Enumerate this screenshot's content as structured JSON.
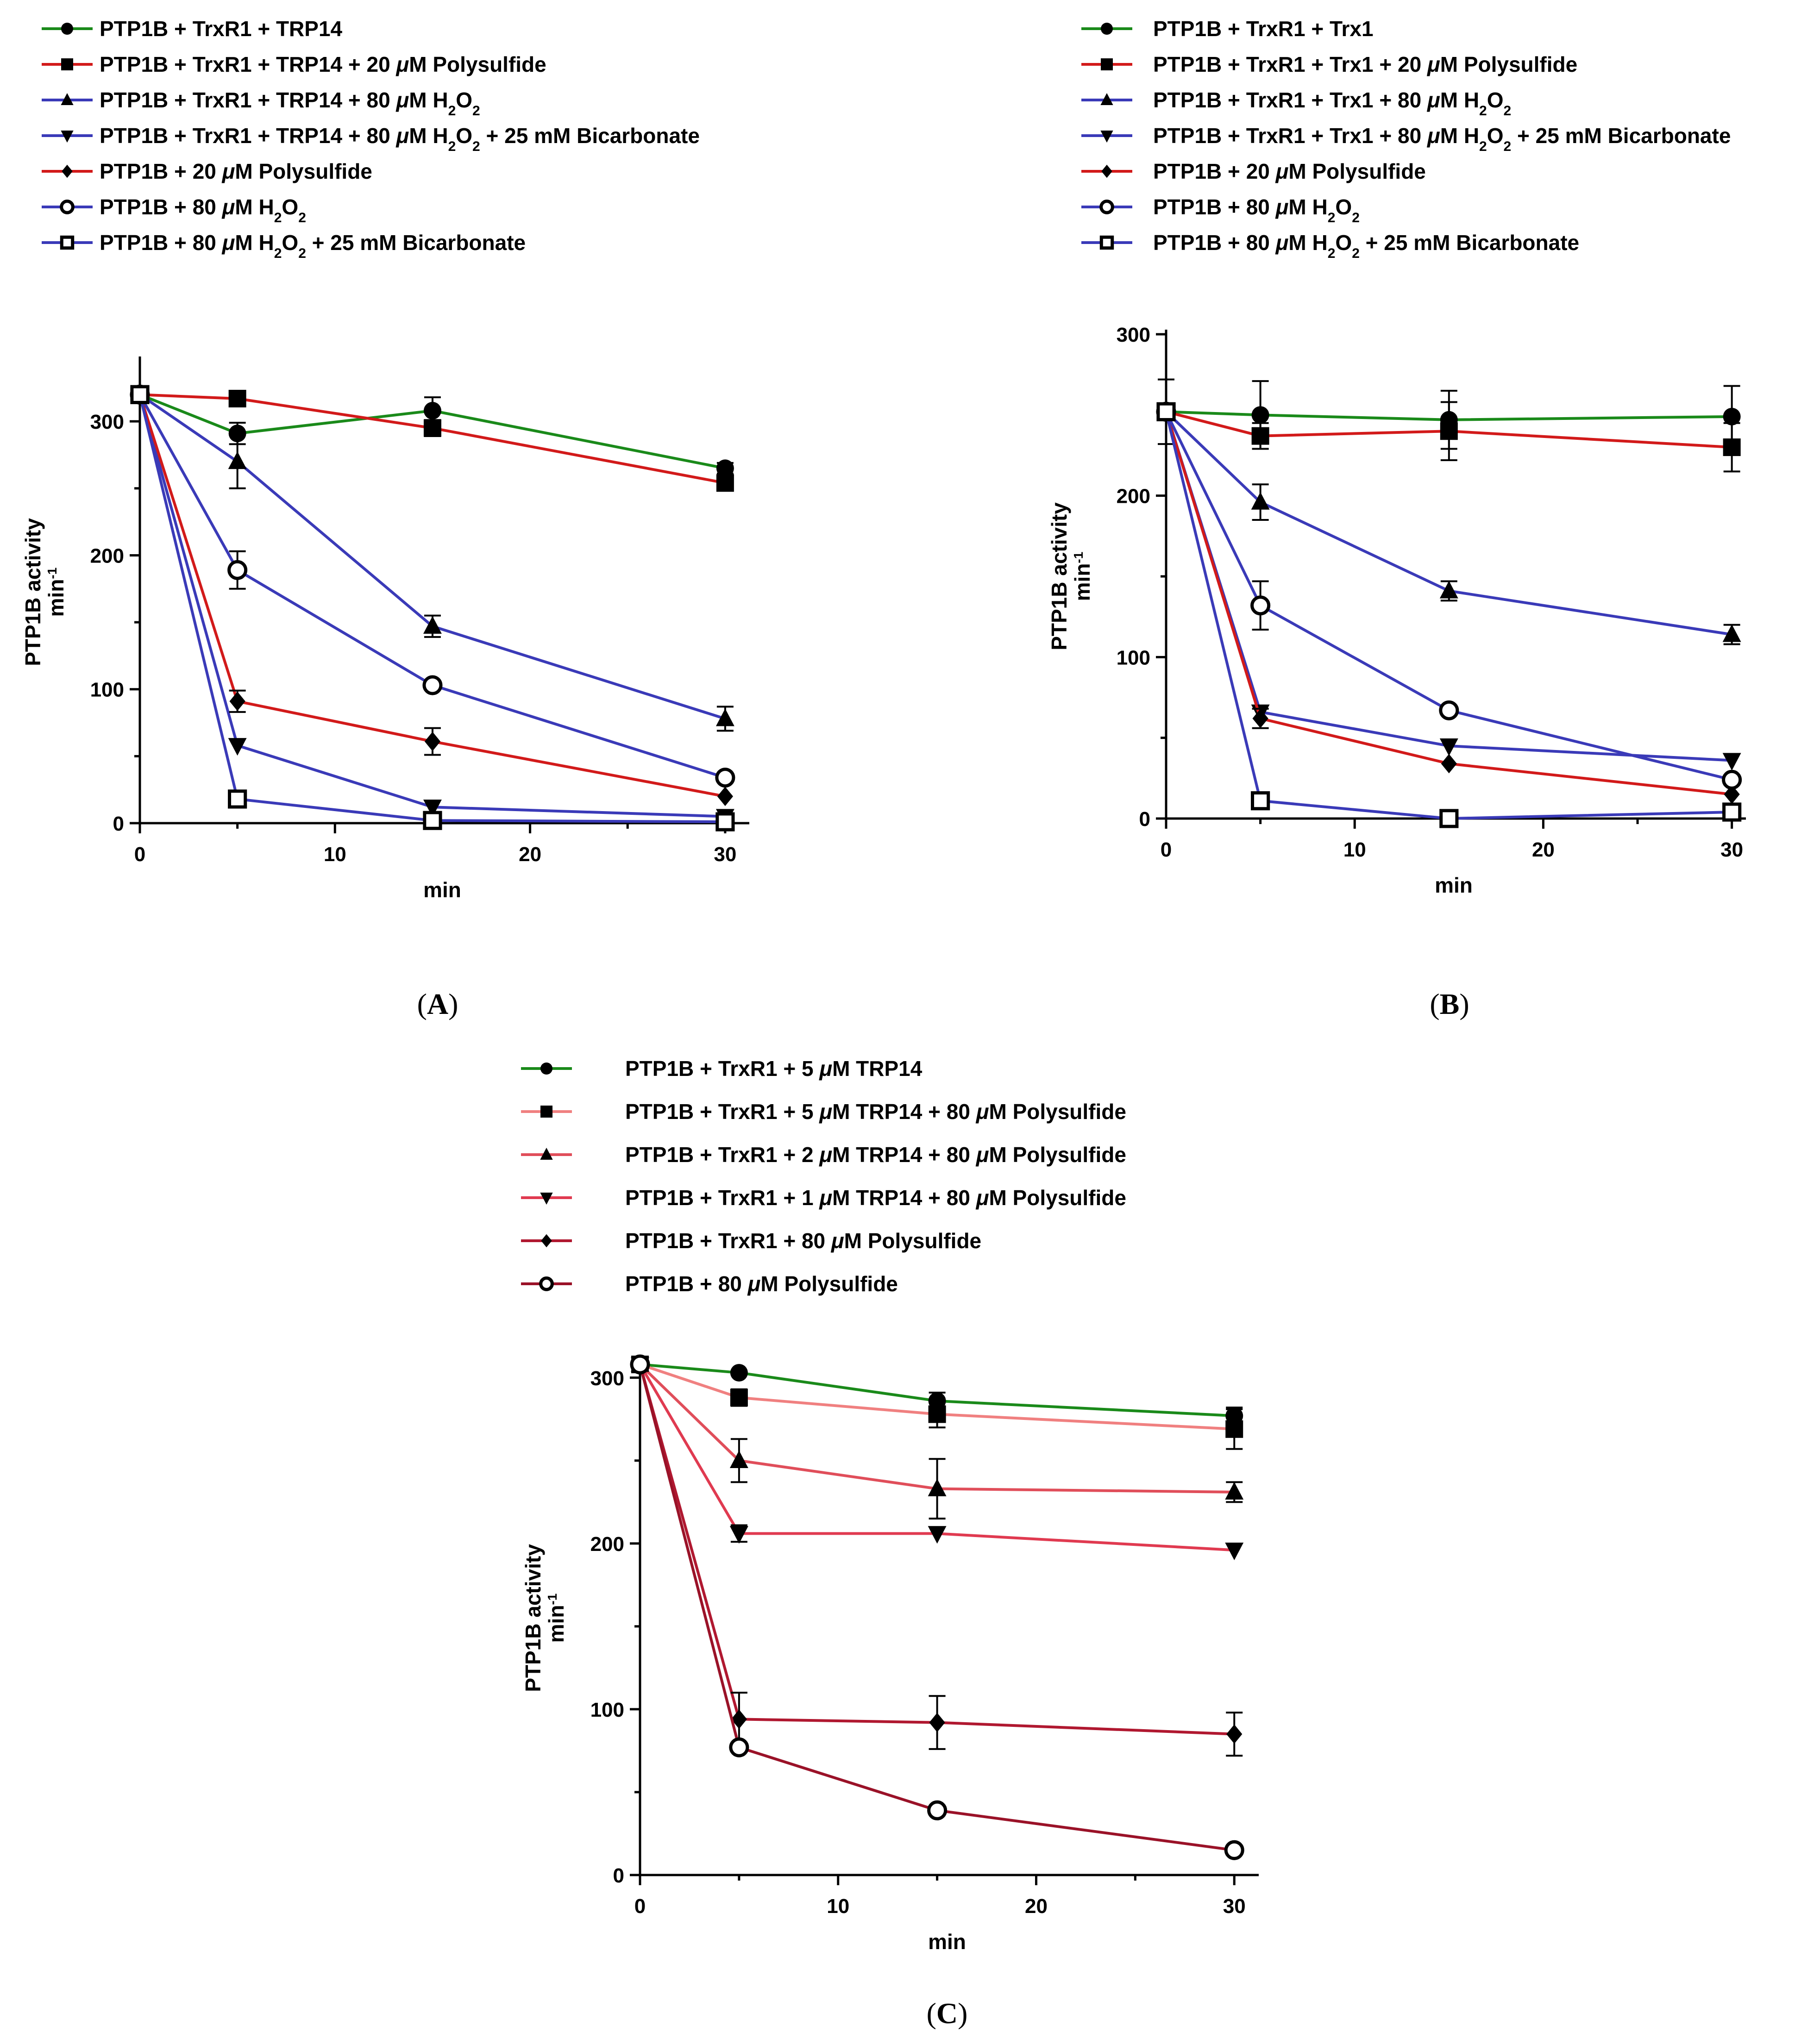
{
  "chart_data": [
    {
      "type": "line",
      "panel_label": "A",
      "xlabel": "min",
      "ylabel": "PTP1B activity",
      "ylabel_unit": "min",
      "ylabel_unit_sup": "-1",
      "xlim": [
        0,
        31
      ],
      "ylim": [
        0,
        345
      ],
      "xticks": [
        0,
        10,
        20,
        30
      ],
      "yticks": [
        0,
        100,
        200,
        300
      ],
      "x": [
        0,
        5,
        15,
        30
      ],
      "series": [
        {
          "name": "PTP1B + TrxR1 + TRP14",
          "label_parts": [
            [
              "t",
              "PTP1B + TrxR1 + TRP14"
            ]
          ],
          "color": "#1a8a1a",
          "marker": "circle",
          "values": [
            320,
            291,
            308,
            265
          ],
          "errors": [
            0,
            8,
            10,
            4
          ]
        },
        {
          "name": "PTP1B + TrxR1 + TRP14 + 20 μM Polysulfide",
          "label_parts": [
            [
              "t",
              "PTP1B + TrxR1 + TRP14 + 20 "
            ],
            [
              "i",
              "μ"
            ],
            [
              "t",
              "M Polysulfide"
            ]
          ],
          "color": "#d21a1a",
          "marker": "square",
          "values": [
            320,
            317,
            295,
            254
          ],
          "errors": [
            0,
            0,
            6,
            0
          ]
        },
        {
          "name": "PTP1B + TrxR1 + TRP14 + 80 μM H2O2",
          "label_parts": [
            [
              "t",
              "PTP1B + TrxR1 + TRP14 + 80 "
            ],
            [
              "i",
              "μ"
            ],
            [
              "t",
              "M H"
            ],
            [
              "s",
              "2"
            ],
            [
              "t",
              "O"
            ],
            [
              "s",
              "2"
            ]
          ],
          "color": "#3a3ab8",
          "marker": "triangle-up",
          "values": [
            320,
            270,
            147,
            78
          ],
          "errors": [
            0,
            20,
            8,
            9
          ]
        },
        {
          "name": "PTP1B + TrxR1 + TRP14 + 80 μM H2O2 + 25 mM Bicarbonate",
          "label_parts": [
            [
              "t",
              "PTP1B + TrxR1 + TRP14 +  80 "
            ],
            [
              "i",
              "μ"
            ],
            [
              "t",
              "M H"
            ],
            [
              "s",
              "2"
            ],
            [
              "t",
              "O"
            ],
            [
              "s",
              "2"
            ],
            [
              "t",
              " + 25 mM Bicarbonate"
            ]
          ],
          "color": "#3a3ab8",
          "marker": "triangle-down",
          "values": [
            320,
            58,
            12,
            5
          ],
          "errors": [
            0,
            0,
            0,
            0
          ]
        },
        {
          "name": "PTP1B + 20 μM Polysulfide",
          "label_parts": [
            [
              "t",
              "PTP1B + 20 "
            ],
            [
              "i",
              "μ"
            ],
            [
              "t",
              "M Polysulfide"
            ]
          ],
          "color": "#d21a1a",
          "marker": "diamond",
          "values": [
            320,
            91,
            61,
            20
          ],
          "errors": [
            0,
            8,
            10,
            0
          ]
        },
        {
          "name": "PTP1B + 80 μM H2O2",
          "label_parts": [
            [
              "t",
              "PTP1B + 80 "
            ],
            [
              "i",
              "μ"
            ],
            [
              "t",
              "M H"
            ],
            [
              "s",
              "2"
            ],
            [
              "t",
              "O"
            ],
            [
              "s",
              "2"
            ]
          ],
          "color": "#3a3ab8",
          "marker": "circle-open",
          "values": [
            320,
            189,
            103,
            34
          ],
          "errors": [
            0,
            14,
            0,
            0
          ]
        },
        {
          "name": "PTP1B + 80 μM H2O2 + 25 mM Bicarbonate",
          "label_parts": [
            [
              "t",
              "PTP1B + 80 "
            ],
            [
              "i",
              "μ"
            ],
            [
              "t",
              "M H"
            ],
            [
              "s",
              "2"
            ],
            [
              "t",
              "O"
            ],
            [
              "s",
              "2"
            ],
            [
              "t",
              " + 25 mM Bicarbonate"
            ]
          ],
          "color": "#3a3ab8",
          "marker": "square-open",
          "values": [
            320,
            18,
            2,
            1
          ],
          "errors": [
            0,
            0,
            0,
            0
          ]
        }
      ]
    },
    {
      "type": "line",
      "panel_label": "B",
      "xlabel": "min",
      "ylabel": "PTP1B activity",
      "ylabel_unit": "min",
      "ylabel_unit_sup": "-1",
      "xlim": [
        0,
        30.5
      ],
      "ylim": [
        0,
        300
      ],
      "xticks": [
        0,
        10,
        20,
        30
      ],
      "yticks": [
        0,
        100,
        200,
        300
      ],
      "x": [
        0,
        5,
        15,
        30
      ],
      "series": [
        {
          "name": "PTP1B + TrxR1 + Trx1",
          "label_parts": [
            [
              "t",
              "PTP1B + TrxR1 + Trx1"
            ]
          ],
          "color": "#1a8a1a",
          "marker": "circle",
          "values": [
            252,
            250,
            247,
            249
          ],
          "errors": [
            20,
            21,
            18,
            19
          ]
        },
        {
          "name": "PTP1B + TrxR1 + Trx1 + 20 μM Polysulfide",
          "label_parts": [
            [
              "t",
              "PTP1B + TrxR1 + Trx1 + 20 "
            ],
            [
              "i",
              "μ"
            ],
            [
              "t",
              "M Polysulfide"
            ]
          ],
          "color": "#d21a1a",
          "marker": "square",
          "values": [
            252,
            237,
            240,
            230
          ],
          "errors": [
            0,
            8,
            18,
            15
          ]
        },
        {
          "name": "PTP1B + TrxR1 + Trx1 + 80 μM H2O2",
          "label_parts": [
            [
              "t",
              "PTP1B + TrxR1 + Trx1 + 80 "
            ],
            [
              "i",
              "μ"
            ],
            [
              "t",
              "M H"
            ],
            [
              "s",
              "2"
            ],
            [
              "t",
              "O"
            ],
            [
              "s",
              "2"
            ]
          ],
          "color": "#3a3ab8",
          "marker": "triangle-up",
          "values": [
            252,
            196,
            141,
            114
          ],
          "errors": [
            0,
            11,
            6,
            6
          ]
        },
        {
          "name": "PTP1B + TrxR1 + Trx1 + 80 μM H2O2 + 25 mM Bicarbonate",
          "label_parts": [
            [
              "t",
              "PTP1B + TrxR1 + Trx1 +  80 "
            ],
            [
              "i",
              "μ"
            ],
            [
              "t",
              "M H"
            ],
            [
              "s",
              "2"
            ],
            [
              "t",
              "O"
            ],
            [
              "s",
              "2"
            ],
            [
              "t",
              " + 25 mM Bicarbonate"
            ]
          ],
          "color": "#3a3ab8",
          "marker": "triangle-down",
          "values": [
            252,
            66,
            45,
            36
          ],
          "errors": [
            0,
            0,
            0,
            0
          ]
        },
        {
          "name": "PTP1B + 20 μM Polysulfide",
          "label_parts": [
            [
              "t",
              "PTP1B + 20 "
            ],
            [
              "i",
              "μ"
            ],
            [
              "t",
              "M Polysulfide"
            ]
          ],
          "color": "#d21a1a",
          "marker": "diamond",
          "values": [
            252,
            62,
            34,
            15
          ],
          "errors": [
            0,
            6,
            0,
            0
          ]
        },
        {
          "name": "PTP1B + 80 μM H2O2",
          "label_parts": [
            [
              "t",
              "PTP1B + 80 "
            ],
            [
              "i",
              "μ"
            ],
            [
              "t",
              "M H"
            ],
            [
              "s",
              "2"
            ],
            [
              "t",
              "O"
            ],
            [
              "s",
              "2"
            ]
          ],
          "color": "#3a3ab8",
          "marker": "circle-open",
          "values": [
            252,
            132,
            67,
            24
          ],
          "errors": [
            0,
            15,
            0,
            0
          ]
        },
        {
          "name": "PTP1B + 80 μM H2O2 + 25 mM Bicarbonate",
          "label_parts": [
            [
              "t",
              "PTP1B + 80 "
            ],
            [
              "i",
              "μ"
            ],
            [
              "t",
              "M H"
            ],
            [
              "s",
              "2"
            ],
            [
              "t",
              "O"
            ],
            [
              "s",
              "2"
            ],
            [
              "t",
              " + 25 mM Bicarbonate"
            ]
          ],
          "color": "#3a3ab8",
          "marker": "square-open",
          "values": [
            252,
            11,
            0,
            4
          ],
          "errors": [
            0,
            0,
            0,
            0
          ]
        }
      ]
    },
    {
      "type": "line",
      "panel_label": "C",
      "xlabel": "min",
      "ylabel": "PTP1B activity",
      "ylabel_unit": "min",
      "ylabel_unit_sup": "-1",
      "xlim": [
        0,
        31
      ],
      "ylim": [
        0,
        310
      ],
      "xticks": [
        0,
        10,
        20,
        30
      ],
      "yticks": [
        0,
        100,
        200,
        300
      ],
      "x": [
        0,
        5,
        15,
        30
      ],
      "series": [
        {
          "name": "PTP1B + TrxR1 + 5 μM TRP14",
          "label_parts": [
            [
              "t",
              "PTP1B + TrxR1 + 5 "
            ],
            [
              "i",
              "μ"
            ],
            [
              "t",
              "M TRP14"
            ]
          ],
          "color": "#1a8a1a",
          "marker": "circle",
          "values": [
            308,
            303,
            286,
            277
          ],
          "errors": [
            0,
            0,
            5,
            5
          ]
        },
        {
          "name": "PTP1B + TrxR1 + 5 μM TRP14 + 80 μM Polysulfide",
          "label_parts": [
            [
              "t",
              "PTP1B + TrxR1 + 5 "
            ],
            [
              "i",
              "μ"
            ],
            [
              "t",
              "M TRP14  + 80 "
            ],
            [
              "i",
              "μ"
            ],
            [
              "t",
              "M Polysulfide"
            ]
          ],
          "color": "#f08080",
          "marker": "square",
          "values": [
            308,
            288,
            278,
            269
          ],
          "errors": [
            0,
            5,
            8,
            12
          ]
        },
        {
          "name": "PTP1B + TrxR1 + 2 μM TRP14 + 80 μM Polysulfide",
          "label_parts": [
            [
              "t",
              "PTP1B + TrxR1 + 2 "
            ],
            [
              "i",
              "μ"
            ],
            [
              "t",
              "M TRP14 + 80 "
            ],
            [
              "i",
              "μ"
            ],
            [
              "t",
              "M Polysulfide"
            ]
          ],
          "color": "#e04e5a",
          "marker": "triangle-up",
          "values": [
            308,
            250,
            233,
            231
          ],
          "errors": [
            0,
            13,
            18,
            6
          ]
        },
        {
          "name": "PTP1B + TrxR1 + 1 μM TRP14 + 80 μM Polysulfide",
          "label_parts": [
            [
              "t",
              "PTP1B + TrxR1 + 1 "
            ],
            [
              "i",
              "μ"
            ],
            [
              "t",
              "M TRP14 + 80 "
            ],
            [
              "i",
              "μ"
            ],
            [
              "t",
              "M Polysulfide"
            ]
          ],
          "color": "#e03a50",
          "marker": "triangle-down",
          "values": [
            308,
            206,
            206,
            196
          ],
          "errors": [
            0,
            5,
            0,
            0
          ]
        },
        {
          "name": "PTP1B + TrxR1 + 80 μM Polysulfide",
          "label_parts": [
            [
              "t",
              "PTP1B + TrxR1 + 80 "
            ],
            [
              "i",
              "μ"
            ],
            [
              "t",
              "M Polysulfide"
            ]
          ],
          "color": "#b01830",
          "marker": "diamond",
          "values": [
            308,
            94,
            92,
            85
          ],
          "errors": [
            0,
            16,
            16,
            13
          ]
        },
        {
          "name": "PTP1B + 80 μM Polysulfide",
          "label_parts": [
            [
              "t",
              "PTP1B + 80 "
            ],
            [
              "i",
              "μ"
            ],
            [
              "t",
              "M Polysulfide"
            ]
          ],
          "color": "#9a1228",
          "marker": "circle-open",
          "values": [
            308,
            77,
            39,
            15
          ],
          "errors": [
            0,
            0,
            0,
            0
          ]
        }
      ]
    }
  ]
}
